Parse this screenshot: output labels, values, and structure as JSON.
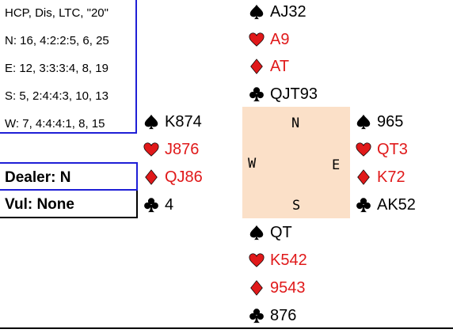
{
  "info": {
    "lines": [
      "HCP, Dis, LTC, \"20\"",
      "N: 16, 4:2:2:5, 6, 25",
      "E: 12, 3:3:3:4, 8, 19",
      "S: 5, 2:4:4:3, 10, 13",
      "W: 7, 4:4:4:1, 8, 15"
    ]
  },
  "dealer": "Dealer: N",
  "vul": "Vul: None",
  "compass": {
    "north": "N",
    "south": "S",
    "east": "E",
    "west": "W"
  },
  "hands": {
    "north": {
      "spades": "AJ32",
      "hearts": "A9",
      "diamonds": "AT",
      "clubs": "QJT93"
    },
    "west": {
      "spades": "K874",
      "hearts": "J876",
      "diamonds": "QJ86",
      "clubs": "4"
    },
    "east": {
      "spades": "965",
      "hearts": "QT3",
      "diamonds": "K72",
      "clubs": "AK52"
    },
    "south": {
      "spades": "QT",
      "hearts": "K542",
      "diamonds": "9543",
      "clubs": "876"
    }
  },
  "colors": {
    "red_suit": "#e0191a",
    "black_suit": "#000000",
    "compass_bg": "#fbe0c8",
    "border_blue": "#1f1fd6"
  },
  "icons": {
    "spades": "spade-icon",
    "hearts": "heart-icon",
    "diamonds": "diamond-icon",
    "clubs": "club-icon"
  }
}
